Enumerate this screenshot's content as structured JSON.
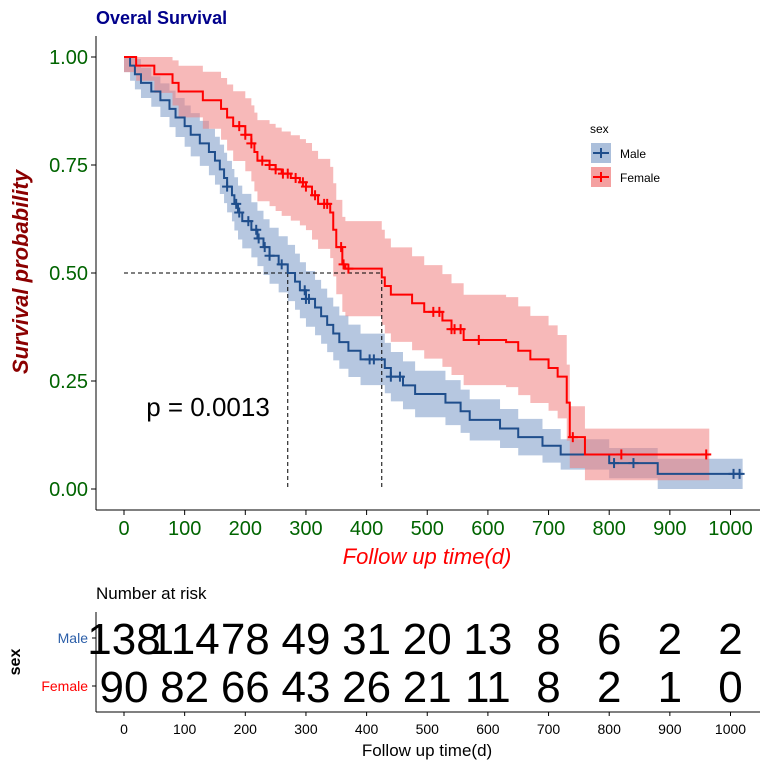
{
  "chart_data": {
    "type": "line",
    "subtype": "kaplan-meier",
    "title": "Overal Survival",
    "xlabel": "Follow up time(d)",
    "ylabel": "Survival probability",
    "xlim": [
      0,
      1050
    ],
    "ylim": [
      0,
      1.0
    ],
    "x_ticks": [
      0,
      100,
      200,
      300,
      400,
      500,
      600,
      700,
      800,
      900,
      1000
    ],
    "y_ticks": [
      0,
      0.25,
      0.5,
      0.75,
      1.0
    ],
    "y_tick_labels": [
      "0.00",
      "0.25",
      "0.50",
      "0.75",
      "1.00"
    ],
    "x_tick_labels": [
      "0",
      "100",
      "200",
      "300",
      "400",
      "500",
      "600",
      "700",
      "800",
      "900",
      "1000"
    ],
    "legend_title": "sex",
    "legend_position": "right",
    "pvalue_text": "p = 0.0013",
    "median_line_y": 0.5,
    "series": [
      {
        "name": "Male",
        "color": "#1f4e8c",
        "band_color": "#8fa9cf",
        "median": 270,
        "steps": [
          [
            0,
            1.0
          ],
          [
            10,
            0.98
          ],
          [
            18,
            0.96
          ],
          [
            28,
            0.94
          ],
          [
            45,
            0.92
          ],
          [
            60,
            0.9
          ],
          [
            75,
            0.88
          ],
          [
            85,
            0.86
          ],
          [
            100,
            0.84
          ],
          [
            110,
            0.82
          ],
          [
            125,
            0.8
          ],
          [
            140,
            0.78
          ],
          [
            150,
            0.76
          ],
          [
            158,
            0.74
          ],
          [
            165,
            0.72
          ],
          [
            170,
            0.7
          ],
          [
            178,
            0.68
          ],
          [
            182,
            0.66
          ],
          [
            188,
            0.64
          ],
          [
            195,
            0.62
          ],
          [
            210,
            0.6
          ],
          [
            220,
            0.58
          ],
          [
            230,
            0.56
          ],
          [
            240,
            0.54
          ],
          [
            255,
            0.52
          ],
          [
            270,
            0.5
          ],
          [
            282,
            0.48
          ],
          [
            290,
            0.46
          ],
          [
            300,
            0.44
          ],
          [
            315,
            0.42
          ],
          [
            325,
            0.4
          ],
          [
            335,
            0.38
          ],
          [
            345,
            0.36
          ],
          [
            355,
            0.34
          ],
          [
            370,
            0.32
          ],
          [
            390,
            0.3
          ],
          [
            430,
            0.28
          ],
          [
            440,
            0.26
          ],
          [
            460,
            0.24
          ],
          [
            480,
            0.22
          ],
          [
            530,
            0.2
          ],
          [
            555,
            0.18
          ],
          [
            570,
            0.16
          ],
          [
            620,
            0.14
          ],
          [
            650,
            0.12
          ],
          [
            690,
            0.1
          ],
          [
            720,
            0.08
          ],
          [
            800,
            0.06
          ],
          [
            880,
            0.035
          ]
        ],
        "end_x": 1020,
        "censor_x": [
          170,
          185,
          190,
          205,
          218,
          222,
          232,
          240,
          260,
          298,
          300,
          305,
          405,
          412,
          440,
          455,
          808,
          840,
          1005,
          1015
        ],
        "risk_counts": [
          138,
          114,
          78,
          49,
          31,
          20,
          13,
          8,
          6,
          2,
          2
        ]
      },
      {
        "name": "Female",
        "color": "#ff0000",
        "band_color": "#f08080",
        "median": 425,
        "steps": [
          [
            0,
            1.0
          ],
          [
            20,
            0.98
          ],
          [
            50,
            0.96
          ],
          [
            80,
            0.94
          ],
          [
            90,
            0.92
          ],
          [
            130,
            0.9
          ],
          [
            160,
            0.88
          ],
          [
            170,
            0.86
          ],
          [
            180,
            0.84
          ],
          [
            200,
            0.82
          ],
          [
            210,
            0.8
          ],
          [
            215,
            0.78
          ],
          [
            220,
            0.76
          ],
          [
            240,
            0.75
          ],
          [
            250,
            0.74
          ],
          [
            260,
            0.73
          ],
          [
            275,
            0.72
          ],
          [
            290,
            0.71
          ],
          [
            300,
            0.7
          ],
          [
            310,
            0.68
          ],
          [
            320,
            0.66
          ],
          [
            340,
            0.64
          ],
          [
            345,
            0.6
          ],
          [
            350,
            0.56
          ],
          [
            360,
            0.52
          ],
          [
            365,
            0.51
          ],
          [
            425,
            0.49
          ],
          [
            430,
            0.47
          ],
          [
            440,
            0.45
          ],
          [
            475,
            0.43
          ],
          [
            495,
            0.41
          ],
          [
            525,
            0.39
          ],
          [
            540,
            0.37
          ],
          [
            560,
            0.345
          ],
          [
            630,
            0.34
          ],
          [
            650,
            0.32
          ],
          [
            670,
            0.3
          ],
          [
            700,
            0.28
          ],
          [
            715,
            0.26
          ],
          [
            730,
            0.2
          ],
          [
            735,
            0.12
          ],
          [
            760,
            0.08
          ]
        ],
        "end_x": 965,
        "censor_x": [
          190,
          200,
          210,
          228,
          240,
          250,
          262,
          270,
          283,
          295,
          300,
          315,
          330,
          335,
          358,
          362,
          370,
          510,
          520,
          540,
          545,
          555,
          585,
          740,
          820,
          960
        ],
        "risk_counts": [
          90,
          82,
          66,
          43,
          26,
          21,
          11,
          8,
          2,
          1,
          0
        ]
      }
    ],
    "risk_table": {
      "title": "Number at risk",
      "ylabel": "sex",
      "xlabel": "Follow up time(d)",
      "times": [
        0,
        100,
        200,
        300,
        400,
        500,
        600,
        700,
        800,
        900,
        1000
      ]
    }
  }
}
